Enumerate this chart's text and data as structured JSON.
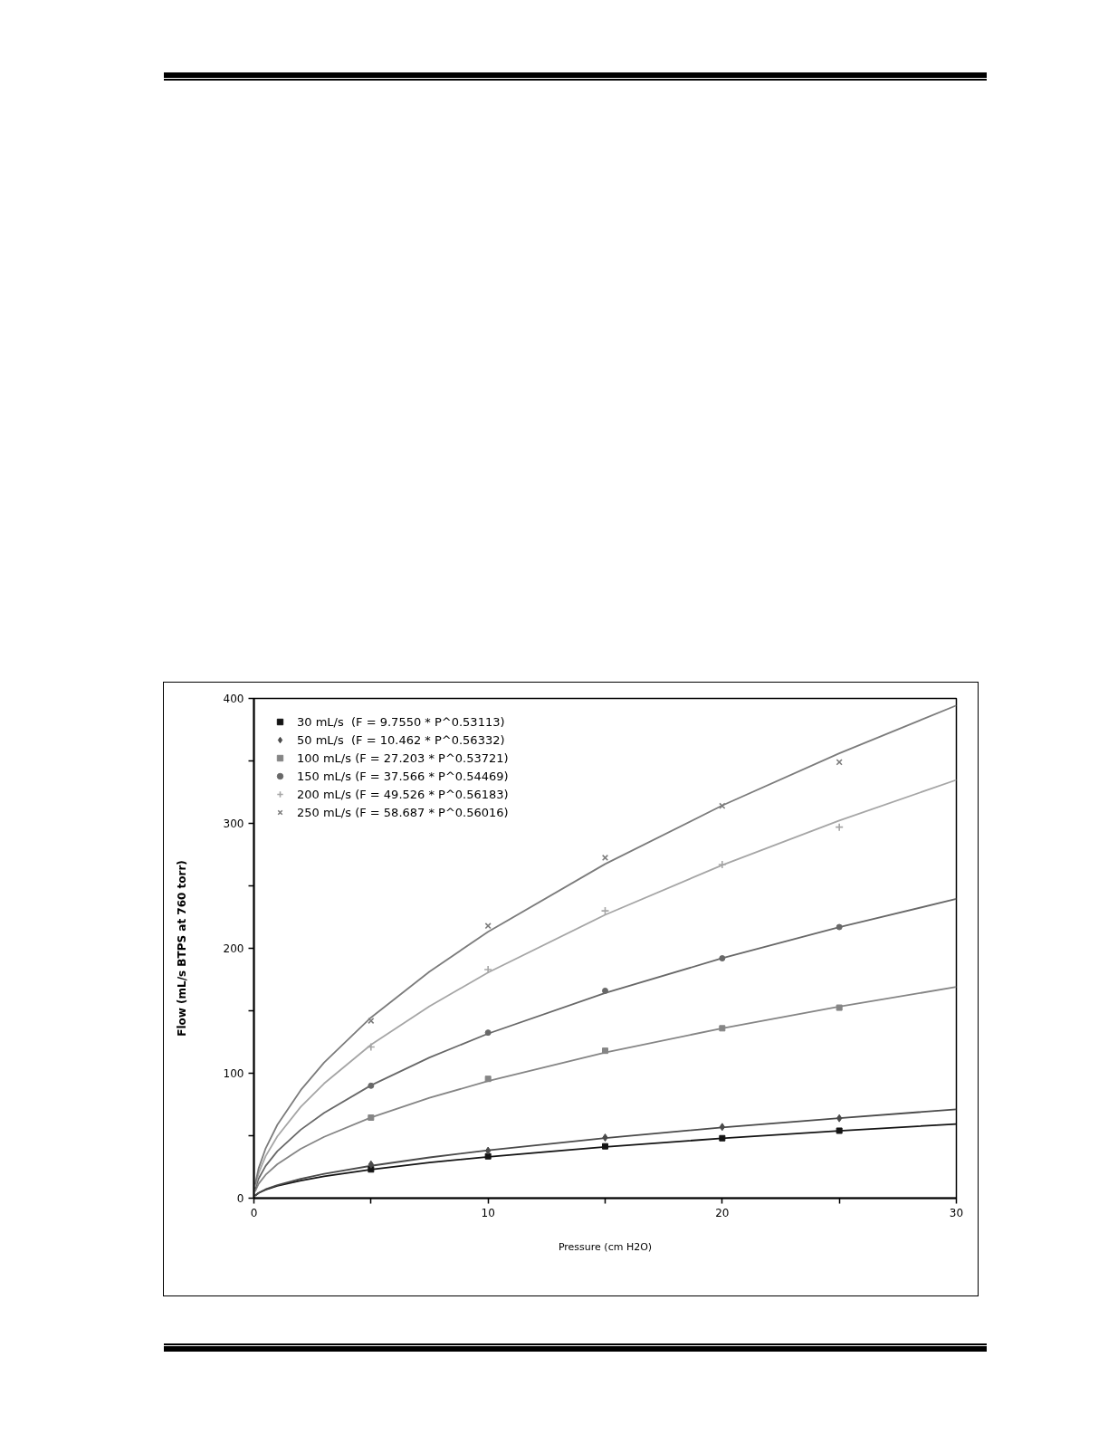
{
  "chart_data": {
    "type": "scatter",
    "xlabel": "Pressure (cm H2O)",
    "ylabel": "Flow (mL/s BTPS at 760 torr)",
    "xlim": [
      0,
      30
    ],
    "ylim": [
      0,
      400
    ],
    "xticks": [
      0,
      {
        "value": 5,
        "label": null
      },
      10,
      {
        "value": 15,
        "label": null
      },
      20,
      {
        "value": 25,
        "label": null
      },
      30
    ],
    "yticks": [
      0,
      {
        "value": 50,
        "label": null
      },
      100,
      {
        "value": 150,
        "label": null
      },
      200,
      {
        "value": 250,
        "label": null
      },
      300,
      {
        "value": 350,
        "label": null
      },
      400
    ],
    "grid": false,
    "legend": "top left",
    "x": [
      5,
      10,
      15,
      20,
      25
    ],
    "series": [
      {
        "type": "line",
        "color": "#141414",
        "marker": "none",
        "line_style": "solid",
        "x": [
          0.05,
          0.2,
          0.5,
          1,
          2,
          3,
          5,
          7.5,
          10,
          15,
          20,
          25,
          30
        ],
        "values": [
          2.0,
          4.2,
          6.8,
          9.8,
          14.1,
          17.5,
          22.9,
          28.5,
          33.1,
          41.1,
          47.9,
          53.9,
          59.4
        ]
      },
      {
        "type": "line",
        "color": "#4a4a4a",
        "marker": "none",
        "line_style": "solid",
        "x": [
          0.05,
          0.2,
          0.5,
          1,
          2,
          3,
          5,
          7.5,
          10,
          15,
          20,
          25,
          30
        ],
        "values": [
          1.9,
          4.2,
          7.1,
          10.5,
          15.5,
          19.4,
          25.9,
          32.6,
          38.3,
          48.1,
          56.6,
          64.1,
          71.1
        ]
      },
      {
        "type": "line",
        "color": "#858585",
        "marker": "none",
        "line_style": "solid",
        "x": [
          0.05,
          0.2,
          0.5,
          1,
          2,
          3,
          5,
          7.5,
          10,
          15,
          20,
          25,
          30
        ],
        "values": [
          5.4,
          11.5,
          18.7,
          27.2,
          39.5,
          49.1,
          64.6,
          80.3,
          93.7,
          116.5,
          136.0,
          153.3,
          169.1
        ]
      },
      {
        "type": "line",
        "color": "#686868",
        "marker": "none",
        "line_style": "solid",
        "x": [
          0.05,
          0.2,
          0.5,
          1,
          2,
          3,
          5,
          7.5,
          10,
          15,
          20,
          25,
          30
        ],
        "values": [
          7.3,
          15.6,
          25.8,
          37.6,
          54.8,
          68.3,
          90.3,
          112.6,
          131.7,
          164.2,
          192.1,
          216.9,
          239.5
        ]
      },
      {
        "type": "line",
        "color": "#a6a6a6",
        "marker": "none",
        "line_style": "solid",
        "x": [
          0.05,
          0.2,
          0.5,
          1,
          2,
          3,
          5,
          7.5,
          10,
          15,
          20,
          25,
          30
        ],
        "values": [
          9.2,
          20.0,
          33.6,
          49.5,
          73.1,
          91.8,
          122.8,
          153.6,
          180.6,
          226.8,
          266.6,
          302.2,
          334.8
        ]
      },
      {
        "type": "line",
        "color": "#7c7c7c",
        "marker": "none",
        "line_style": "solid",
        "x": [
          0.05,
          0.2,
          0.5,
          1,
          2,
          3,
          5,
          7.5,
          10,
          15,
          20,
          25,
          30
        ],
        "values": [
          11.0,
          23.8,
          39.8,
          58.7,
          86.5,
          108.6,
          144.6,
          181.4,
          213.2,
          267.5,
          314.3,
          356.1,
          394.4
        ]
      },
      {
        "name": "30 mL/s  (F = 9.7550 * P^0.53113)",
        "color": "#141414",
        "marker": "square",
        "values": [
          23,
          33.5,
          41.5,
          48,
          54
        ]
      },
      {
        "name": "50 mL/s  (F = 10.462 * P^0.56332)",
        "color": "#4a4a4a",
        "marker": "diamond",
        "values": [
          27,
          38,
          48.5,
          57,
          64
        ]
      },
      {
        "name": "100 mL/s (F = 27.203 * P^0.53721)",
        "color": "#858585",
        "marker": "square",
        "values": [
          64.5,
          95.5,
          118,
          136,
          152.5
        ]
      },
      {
        "name": "150 mL/s (F = 37.566 * P^0.54469)",
        "color": "#686868",
        "marker": "circle",
        "values": [
          90,
          132.5,
          166,
          192,
          217
        ]
      },
      {
        "name": "200 mL/s (F = 49.526 * P^0.56183)",
        "color": "#a6a6a6",
        "marker": "cross",
        "values": [
          121,
          183,
          230,
          267,
          297
        ]
      },
      {
        "name": "250 mL/s (F = 58.687 * P^0.56016)",
        "color": "#7c7c7c",
        "marker": "x",
        "values": [
          142,
          218,
          272.5,
          314,
          349
        ]
      }
    ]
  }
}
